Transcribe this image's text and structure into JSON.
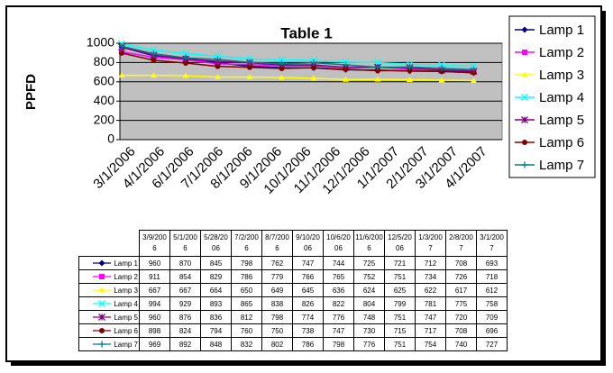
{
  "chart_data": {
    "type": "line",
    "title": "Table 1",
    "y_label": "PPFD",
    "x_axis_labels": [
      "3/1/2006",
      "4/1/2006",
      "6/1/2006",
      "7/1/2006",
      "8/1/2006",
      "9/1/2006",
      "10/1/2006",
      "11/1/2006",
      "12/1/2006",
      "1/1/2007",
      "2/1/2007",
      "3/1/2007",
      "4/1/2007"
    ],
    "categories": [
      "3/9/2006",
      "5/1/2006",
      "5/28/2006",
      "7/2/2006",
      "8/7/2006",
      "9/10/2006",
      "10/6/2006",
      "11/6/2006",
      "12/5/2006",
      "1/3/2007",
      "2/8/2007",
      "3/1/2007"
    ],
    "ylim": [
      0,
      1000
    ],
    "yticks": [
      0,
      200,
      400,
      600,
      800,
      1000
    ],
    "grid": true,
    "series": [
      {
        "name": "Lamp 1",
        "color": "#000080",
        "marker": "diamond",
        "values": [
          960,
          870,
          845,
          798,
          762,
          747,
          744,
          725,
          721,
          712,
          708,
          693
        ]
      },
      {
        "name": "Lamp 2",
        "color": "#ff00ff",
        "marker": "square",
        "values": [
          911,
          854,
          829,
          786,
          779,
          766,
          765,
          752,
          751,
          734,
          726,
          718
        ]
      },
      {
        "name": "Lamp 3",
        "color": "#ffff00",
        "marker": "triangle",
        "values": [
          667,
          667,
          664,
          650,
          649,
          645,
          636,
          624,
          625,
          622,
          617,
          612
        ]
      },
      {
        "name": "Lamp 4",
        "color": "#00ffff",
        "marker": "x",
        "values": [
          994,
          929,
          893,
          865,
          838,
          826,
          822,
          804,
          799,
          781,
          775,
          758
        ]
      },
      {
        "name": "Lamp 5",
        "color": "#800080",
        "marker": "star",
        "values": [
          960,
          876,
          836,
          812,
          798,
          774,
          776,
          748,
          751,
          747,
          720,
          709
        ]
      },
      {
        "name": "Lamp 6",
        "color": "#800000",
        "marker": "circle",
        "values": [
          898,
          824,
          794,
          760,
          750,
          738,
          747,
          730,
          715,
          717,
          708,
          696
        ]
      },
      {
        "name": "Lamp 7",
        "color": "#008080",
        "marker": "plus",
        "values": [
          969,
          892,
          848,
          832,
          802,
          786,
          798,
          776,
          751,
          754,
          740,
          727
        ]
      }
    ]
  }
}
